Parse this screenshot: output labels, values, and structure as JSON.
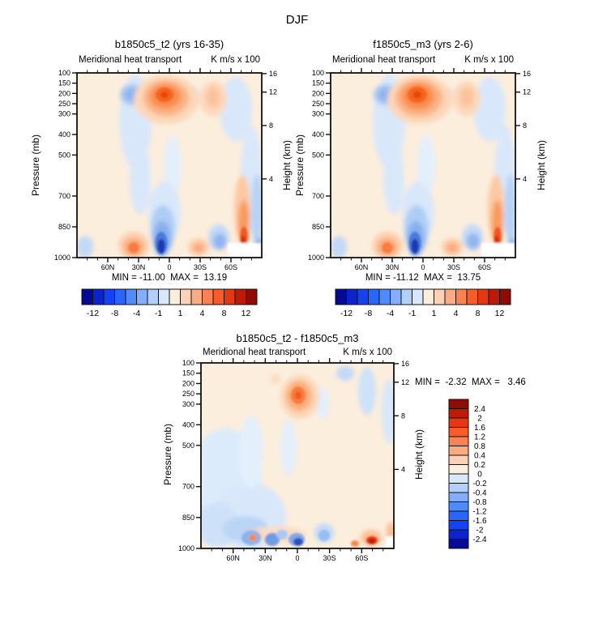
{
  "page_title": "DJF",
  "colors": {
    "field_background": "#fceedd",
    "axis": "#111111",
    "palette_blue_to_red": [
      "#050a94",
      "#0b24cd",
      "#1343f2",
      "#2a65fd",
      "#4f8bfd",
      "#83aefc",
      "#b3cff9",
      "#d9e7fa",
      "#fceedd",
      "#fcd1b5",
      "#fbab84",
      "#fb8253",
      "#f95b2b",
      "#e33913",
      "#bd1a09",
      "#8e0c04"
    ]
  },
  "axes": {
    "pressure_label": "Pressure (mb)",
    "height_label": "Height (km)",
    "pressure_ticks": [
      100,
      150,
      200,
      250,
      300,
      400,
      500,
      700,
      850,
      1000
    ],
    "height_ticks": [
      16,
      12,
      8,
      4
    ],
    "height_fracs": [
      0.004,
      0.104,
      0.285,
      0.574
    ],
    "lat_ticks": [
      "60N",
      "30N",
      "0",
      "30S",
      "60S"
    ]
  },
  "panels": [
    {
      "title": "b1850c5_t2 (yrs 16-35)",
      "subtitle_left": "Meridional heat transport",
      "subtitle_right": "K m/s x 100",
      "stats": "MIN = -11.00  MAX =  13.19",
      "colorbar_labels": [
        "-12",
        "-8",
        "-4",
        "-1",
        "1",
        "4",
        "8",
        "12"
      ]
    },
    {
      "title": "f1850c5_m3 (yrs 2-6)",
      "subtitle_left": "Meridional heat transport",
      "subtitle_right": "K m/s x 100",
      "stats": "MIN = -11.12  MAX =  13.75",
      "colorbar_labels": [
        "-12",
        "-8",
        "-4",
        "-1",
        "1",
        "4",
        "8",
        "12"
      ]
    },
    {
      "title": "b1850c5_t2 - f1850c5_m3",
      "subtitle_left": "Meridional heat transport",
      "subtitle_right": "K m/s x 100",
      "stats": "MIN =  -2.32  MAX =   3.46",
      "colorbar_labels": [
        "2.4",
        "2",
        "1.6",
        "1.2",
        "0.8",
        "0.4",
        "0.2",
        "0",
        "-0.2",
        "-0.4",
        "-0.8",
        "-1.2",
        "-1.6",
        "-2",
        "-2.4"
      ]
    }
  ],
  "chart_data": [
    {
      "type": "filled_contour",
      "panel": "top_left",
      "season": "DJF",
      "title": "b1850c5_t2 (yrs 16-35)",
      "variable": "Meridional heat transport",
      "units": "K m/s x 100",
      "x_axis": {
        "ticks": [
          "60N",
          "30N",
          "0",
          "30S",
          "60S"
        ],
        "range_left_to_right": [
          "90N",
          "90S"
        ]
      },
      "y_axis_left": {
        "label": "Pressure (mb)",
        "ticks": [
          100,
          150,
          200,
          250,
          300,
          400,
          500,
          700,
          850,
          1000
        ],
        "scale": "linear",
        "min": 100,
        "max": 1000
      },
      "y_axis_right": {
        "label": "Height (km)",
        "ticks": [
          16,
          12,
          8,
          4
        ]
      },
      "min": -11.0,
      "max": 13.19,
      "contour_levels": [
        -12,
        -10,
        -8,
        -6,
        -4,
        -2,
        -1,
        0,
        1,
        2,
        4,
        6,
        8,
        10,
        12
      ],
      "colorbar_labeled_levels": [
        -12,
        -8,
        -4,
        -1,
        1,
        4,
        8,
        12
      ],
      "features": [
        "positive maximum (~13) near 0-10N at 150-300 mb",
        "negative cell (-2 to -4) near 20-30N around 200 mb",
        "strong negative minimum (~-11) near 0-15N at 850-1000 mb",
        "positive cell (4-8) near 35-50N at 900-1000 mb",
        "positive cell near 25-35S at 950-1000 mb",
        "negative cell near 45-55S at 850-1000 mb",
        "positive column (up to ~8) near 60-75S below 500 mb",
        "weak negative bands 30-45N aloft and near 60-90S; weakly positive background elsewhere",
        "blank (missing) region at bottom-right corner over Antarctica"
      ]
    },
    {
      "type": "filled_contour",
      "panel": "top_right",
      "season": "DJF",
      "title": "f1850c5_m3 (yrs 2-6)",
      "variable": "Meridional heat transport",
      "units": "K m/s x 100",
      "x_axis": {
        "ticks": [
          "60N",
          "30N",
          "0",
          "30S",
          "60S"
        ],
        "range_left_to_right": [
          "90N",
          "90S"
        ]
      },
      "y_axis_left": {
        "label": "Pressure (mb)",
        "ticks": [
          100,
          150,
          200,
          250,
          300,
          400,
          500,
          700,
          850,
          1000
        ],
        "scale": "linear",
        "min": 100,
        "max": 1000
      },
      "y_axis_right": {
        "label": "Height (km)",
        "ticks": [
          16,
          12,
          8,
          4
        ]
      },
      "min": -11.12,
      "max": 13.75,
      "contour_levels": [
        -12,
        -10,
        -8,
        -6,
        -4,
        -2,
        -1,
        0,
        1,
        2,
        4,
        6,
        8,
        10,
        12
      ],
      "colorbar_labeled_levels": [
        -12,
        -8,
        -4,
        -1,
        1,
        4,
        8,
        12
      ],
      "features": [
        "pattern nearly identical to b1850c5_t2 panel",
        "positive maximum (~13.75) near 0-10N at 150-300 mb",
        "strong negative minimum (~-11.1) near 0-15N at 850-1000 mb"
      ]
    },
    {
      "type": "filled_contour",
      "panel": "bottom_difference",
      "season": "DJF",
      "title": "b1850c5_t2 - f1850c5_m3",
      "variable": "Meridional heat transport",
      "units": "K m/s x 100",
      "x_axis": {
        "ticks": [
          "60N",
          "30N",
          "0",
          "30S",
          "60S"
        ],
        "range_left_to_right": [
          "90N",
          "90S"
        ]
      },
      "y_axis_left": {
        "label": "Pressure (mb)",
        "ticks": [
          100,
          150,
          200,
          250,
          300,
          400,
          500,
          700,
          850,
          1000
        ],
        "scale": "linear",
        "min": 100,
        "max": 1000
      },
      "y_axis_right": {
        "label": "Height (km)",
        "ticks": [
          16,
          12,
          8,
          4
        ]
      },
      "min": -2.32,
      "max": 3.46,
      "contour_levels": [
        -2.4,
        -2,
        -1.6,
        -1.2,
        -0.8,
        -0.4,
        -0.2,
        0,
        0.2,
        0.4,
        0.8,
        1.2,
        1.6,
        2,
        2.4
      ],
      "colorbar_labeled_levels": [
        2.4,
        2,
        1.6,
        1.2,
        0.8,
        0.4,
        0.2,
        0,
        -0.2,
        -0.4,
        -0.8,
        -1.2,
        -1.6,
        -2,
        -2.4
      ],
      "features": [
        "positive maximum (~3.46) near 0-5N at 150-300 mb",
        "broad weak negative region 30-90N from 300 mb to the surface",
        "negative minimum (~-2.32) near the equator at 950-1000 mb",
        "positive cell (~2-3) near 55-65S at 950-1000 mb",
        "small negative cells aloft near 10-30S and 40-60S",
        "mostly weak positive background aloft"
      ]
    }
  ]
}
